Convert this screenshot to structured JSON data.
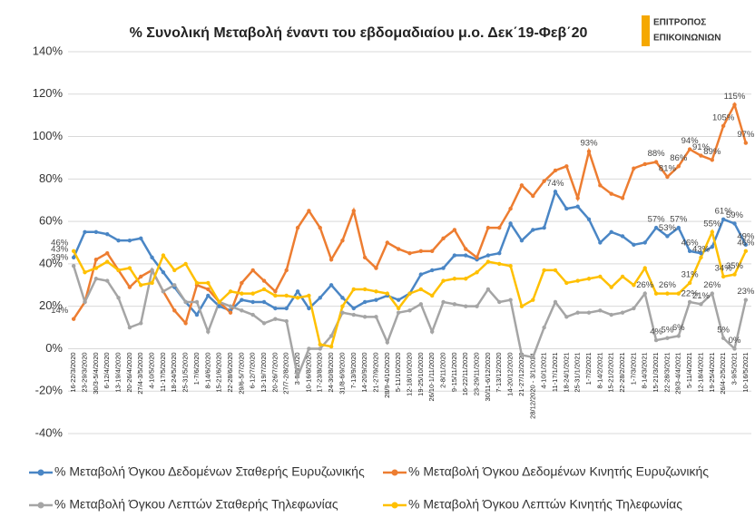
{
  "chart_data": {
    "type": "line",
    "title": "% Συνολική Μεταβολή έναντι του εβδομαδιαίου μ.ο. Δεκ΄19-Φεβ΄20",
    "logo": [
      "ΕΠΙΤΡΟΠΟΣ",
      "ΕΠΙΚΟΙΝΩΝΙΩΝ"
    ],
    "categories": [
      "16-22/3/2020",
      "23-29/3/2020",
      "30/3-5/4/2020",
      "6-12/4/2020",
      "13-19/4/2020",
      "20-26/4/2020",
      "27/4-3/5/2020",
      "4-10/5/2020",
      "11-17/5/2020",
      "18-24/5/2020",
      "25-31/5/2020",
      "1-7/6/2020",
      "8-14/6/2020",
      "15-21/6/2020",
      "22-28/6/2020",
      "29/6-5/7/2020",
      "6-12/7/2020",
      "13-19/7/2020",
      "20-26/7/2020",
      "27/7-2/8/2020",
      "3-9/8/2020",
      "10-16/8/2020",
      "17-23/8/2020",
      "24-30/8/2020",
      "31/8-6/9/2020",
      "7-13/9/2020",
      "14-20/9/2020",
      "21-27/9/2020",
      "28/9-4/10/2020",
      "5-11/10/2020",
      "12-18/10/2020",
      "19-25/10/2020",
      "26/10-1/11/2020",
      "2-8/11/2020",
      "9-15/11/2020",
      "16-22/11/2020",
      "23-29/11/2020",
      "30/11-6/12/2020",
      "7-13/12/2020",
      "14-20/12/2020",
      "21-27/12/2020",
      "28/12/2020 - 3/1/2021",
      "4-10/1/2021",
      "11-17/1/2021",
      "18-24/1/2021",
      "25-31/1/2021",
      "1-7/2/2021",
      "8-14/2/2021",
      "15-21/2/2021",
      "22-28/2/2021",
      "1-7/3/2021",
      "8-14/3/2021",
      "15-21/3/2021",
      "22-28/3/2021",
      "29/3-4/4/2021",
      "5-11/4/2021",
      "12-18/4/2021",
      "19-25/4/2021",
      "26/4-2/5/2021",
      "3-9/5/2021",
      "10-16/5/2021"
    ],
    "series": [
      {
        "name": "% Μεταβολή Όγκου Δεδομένων Σταθερής Ευρυζωνικής",
        "color": "#4a86c5",
        "values": [
          43,
          55,
          55,
          54,
          51,
          51,
          52,
          43,
          36,
          29,
          22,
          16,
          25,
          20,
          18,
          23,
          22,
          22,
          19,
          19,
          27,
          19,
          24,
          30,
          24,
          19,
          22,
          23,
          25,
          23,
          26,
          35,
          37,
          38,
          44,
          44,
          42,
          44,
          45,
          59,
          51,
          56,
          57,
          74,
          66,
          67,
          61,
          50,
          55,
          53,
          49,
          50,
          57,
          53,
          57,
          46,
          45,
          48,
          61,
          59,
          49
        ],
        "value_labels": [
          "43%",
          null,
          null,
          null,
          null,
          null,
          null,
          null,
          null,
          null,
          null,
          null,
          null,
          null,
          null,
          null,
          null,
          null,
          null,
          null,
          null,
          null,
          null,
          null,
          null,
          null,
          null,
          null,
          null,
          null,
          null,
          null,
          null,
          null,
          null,
          null,
          null,
          null,
          null,
          null,
          null,
          null,
          null,
          "74%",
          null,
          null,
          null,
          null,
          null,
          null,
          null,
          null,
          "57%",
          "53%",
          "57%",
          "46%",
          null,
          null,
          "61%",
          "59%",
          "49%"
        ]
      },
      {
        "name": "% Μεταβολή Όγκου Δεδομένων Κινητής Ευρυζωνικής",
        "color": "#ed7d31",
        "values": [
          14,
          22,
          42,
          45,
          37,
          29,
          34,
          37,
          27,
          18,
          12,
          30,
          28,
          22,
          17,
          31,
          37,
          32,
          27,
          37,
          57,
          65,
          57,
          42,
          51,
          65,
          43,
          38,
          50,
          47,
          45,
          46,
          46,
          52,
          56,
          47,
          43,
          57,
          57,
          66,
          77,
          72,
          79,
          84,
          86,
          71,
          93,
          77,
          73,
          71,
          85,
          87,
          88,
          81,
          86,
          94,
          91,
          89,
          105,
          115,
          97
        ],
        "value_labels": [
          "14%",
          null,
          null,
          null,
          null,
          null,
          null,
          null,
          null,
          null,
          null,
          null,
          null,
          null,
          null,
          null,
          null,
          null,
          null,
          null,
          null,
          null,
          null,
          null,
          null,
          null,
          null,
          null,
          null,
          null,
          null,
          null,
          null,
          null,
          null,
          null,
          null,
          null,
          null,
          null,
          null,
          null,
          null,
          null,
          null,
          null,
          "93%",
          null,
          null,
          null,
          null,
          null,
          "88%",
          "81%",
          "86%",
          "94%",
          "91%",
          "89%",
          "105%",
          "115%",
          "97%"
        ]
      },
      {
        "name": "% Μεταβολή Όγκου Λεπτών Σταθερής Τηλεφωνίας",
        "color": "#a5a5a5",
        "values": [
          39,
          22,
          33,
          32,
          24,
          10,
          12,
          37,
          27,
          30,
          22,
          22,
          8,
          22,
          20,
          18,
          16,
          12,
          14,
          13,
          -13,
          0,
          0,
          6,
          17,
          16,
          15,
          15,
          3,
          17,
          18,
          21,
          8,
          22,
          21,
          20,
          20,
          28,
          22,
          23,
          -3,
          -4,
          10,
          22,
          15,
          17,
          17,
          18,
          16,
          17,
          19,
          26,
          4,
          5,
          6,
          22,
          21,
          26,
          5,
          0,
          23
        ],
        "value_labels": [
          "39%",
          null,
          null,
          null,
          null,
          null,
          null,
          null,
          null,
          null,
          null,
          null,
          null,
          null,
          null,
          null,
          null,
          null,
          null,
          null,
          null,
          null,
          null,
          null,
          null,
          null,
          null,
          null,
          null,
          null,
          null,
          null,
          null,
          null,
          null,
          null,
          null,
          null,
          null,
          null,
          null,
          null,
          null,
          null,
          null,
          null,
          null,
          null,
          null,
          null,
          null,
          "26%",
          "4%",
          "5%",
          "6%",
          "22%",
          "21%",
          "26%",
          "5%",
          "0%",
          "23%"
        ]
      },
      {
        "name": "% Μεταβολή Όγκου Λεπτών Κινητής Τηλεφωνίας",
        "color": "#ffc000",
        "values": [
          46,
          36,
          38,
          41,
          37,
          38,
          30,
          31,
          44,
          37,
          40,
          31,
          31,
          22,
          27,
          26,
          26,
          28,
          25,
          25,
          24,
          25,
          2,
          1,
          20,
          28,
          28,
          27,
          26,
          19,
          26,
          28,
          25,
          32,
          33,
          33,
          36,
          41,
          40,
          39,
          20,
          23,
          37,
          37,
          31,
          32,
          33,
          34,
          29,
          34,
          30,
          38,
          26,
          26,
          26,
          31,
          43,
          55,
          34,
          35,
          46
        ],
        "value_labels": [
          "46%",
          null,
          null,
          null,
          null,
          null,
          null,
          null,
          null,
          null,
          null,
          null,
          null,
          null,
          null,
          null,
          null,
          null,
          null,
          null,
          null,
          null,
          null,
          null,
          null,
          null,
          null,
          null,
          null,
          null,
          null,
          null,
          null,
          null,
          null,
          null,
          null,
          null,
          null,
          null,
          null,
          null,
          null,
          null,
          null,
          null,
          null,
          null,
          null,
          null,
          null,
          null,
          null,
          "26%",
          null,
          "31%",
          "43%",
          "55%",
          "34%",
          "35%",
          "46%"
        ]
      }
    ],
    "ylim": [
      -40,
      140
    ],
    "yticks": [
      {
        "value": -40,
        "label": "-40%"
      },
      {
        "value": -20,
        "label": "-20%"
      },
      {
        "value": 0,
        "label": "0%"
      },
      {
        "value": 20,
        "label": "20%"
      },
      {
        "value": 40,
        "label": "40%"
      },
      {
        "value": 60,
        "label": "60%"
      },
      {
        "value": 80,
        "label": "80%"
      },
      {
        "value": 100,
        "label": "100%"
      },
      {
        "value": 120,
        "label": "120%"
      },
      {
        "value": 140,
        "label": "140%"
      }
    ],
    "grid": true
  }
}
